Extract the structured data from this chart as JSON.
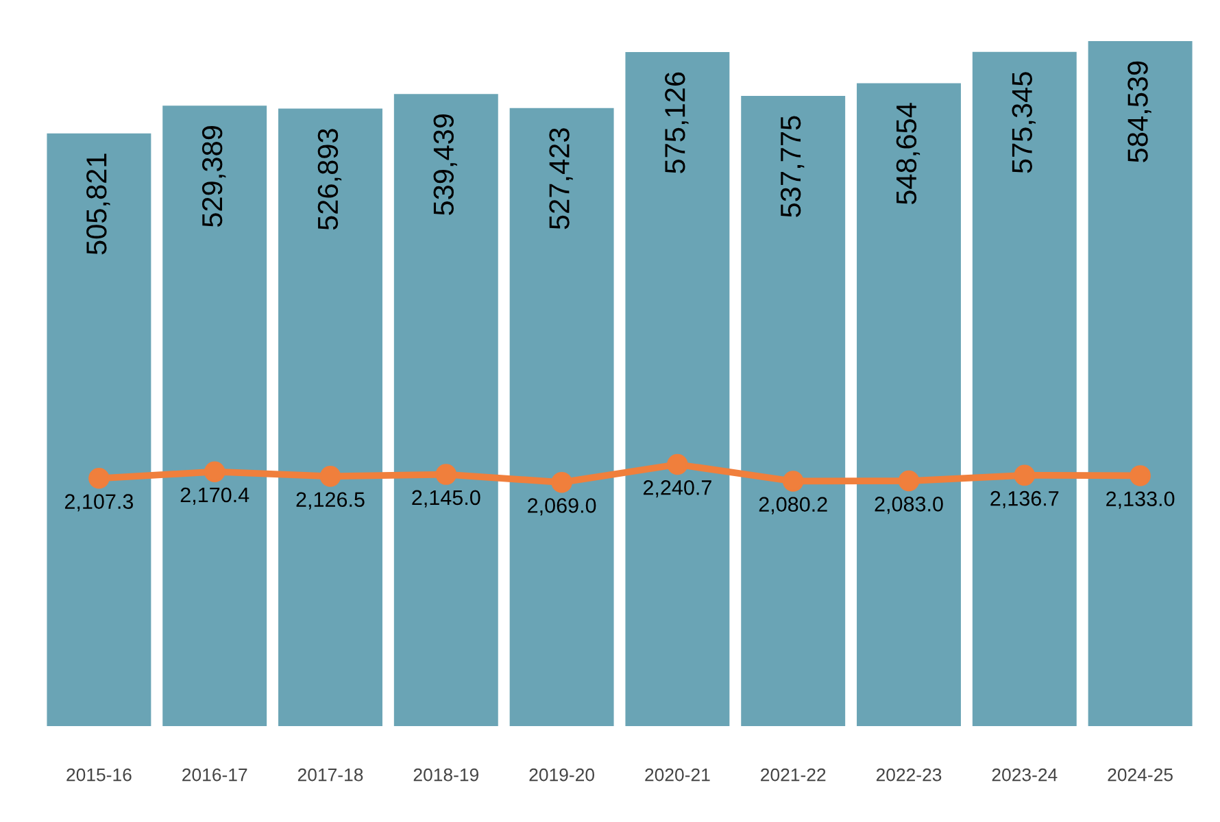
{
  "chart_data": {
    "type": "bar",
    "categories": [
      "2015-16",
      "2016-17",
      "2017-18",
      "2018-19",
      "2019-20",
      "2020-21",
      "2021-22",
      "2022-23",
      "2023-24",
      "2024-25"
    ],
    "series": [
      {
        "color": "#6aa4b5",
        "values": [
          505821,
          529389,
          526893,
          539439,
          527423,
          575126,
          537775,
          548654,
          575345,
          584539
        ],
        "value_labels": [
          "505,821",
          "529,389",
          "526,893",
          "539,439",
          "527,423",
          "575,126",
          "537,775",
          "548,654",
          "575,345",
          "584,539"
        ]
      },
      {
        "type": "line",
        "axis": "y2",
        "color": "#f07f3c",
        "marker": "circle",
        "line_style": "solid",
        "values": [
          2107.3,
          2170.4,
          2126.5,
          2145.0,
          2069.0,
          2240.7,
          2080.2,
          2083.0,
          2136.7,
          2133.0
        ],
        "value_labels": [
          "2,107.3",
          "2,170.4",
          "2,126.5",
          "2,145.0",
          "2,069.0",
          "2,240.7",
          "2,080.2",
          "2,083.0",
          "2,136.7",
          "2,133.0"
        ]
      }
    ],
    "tick_labels": "x",
    "grid": false,
    "legend": false
  }
}
